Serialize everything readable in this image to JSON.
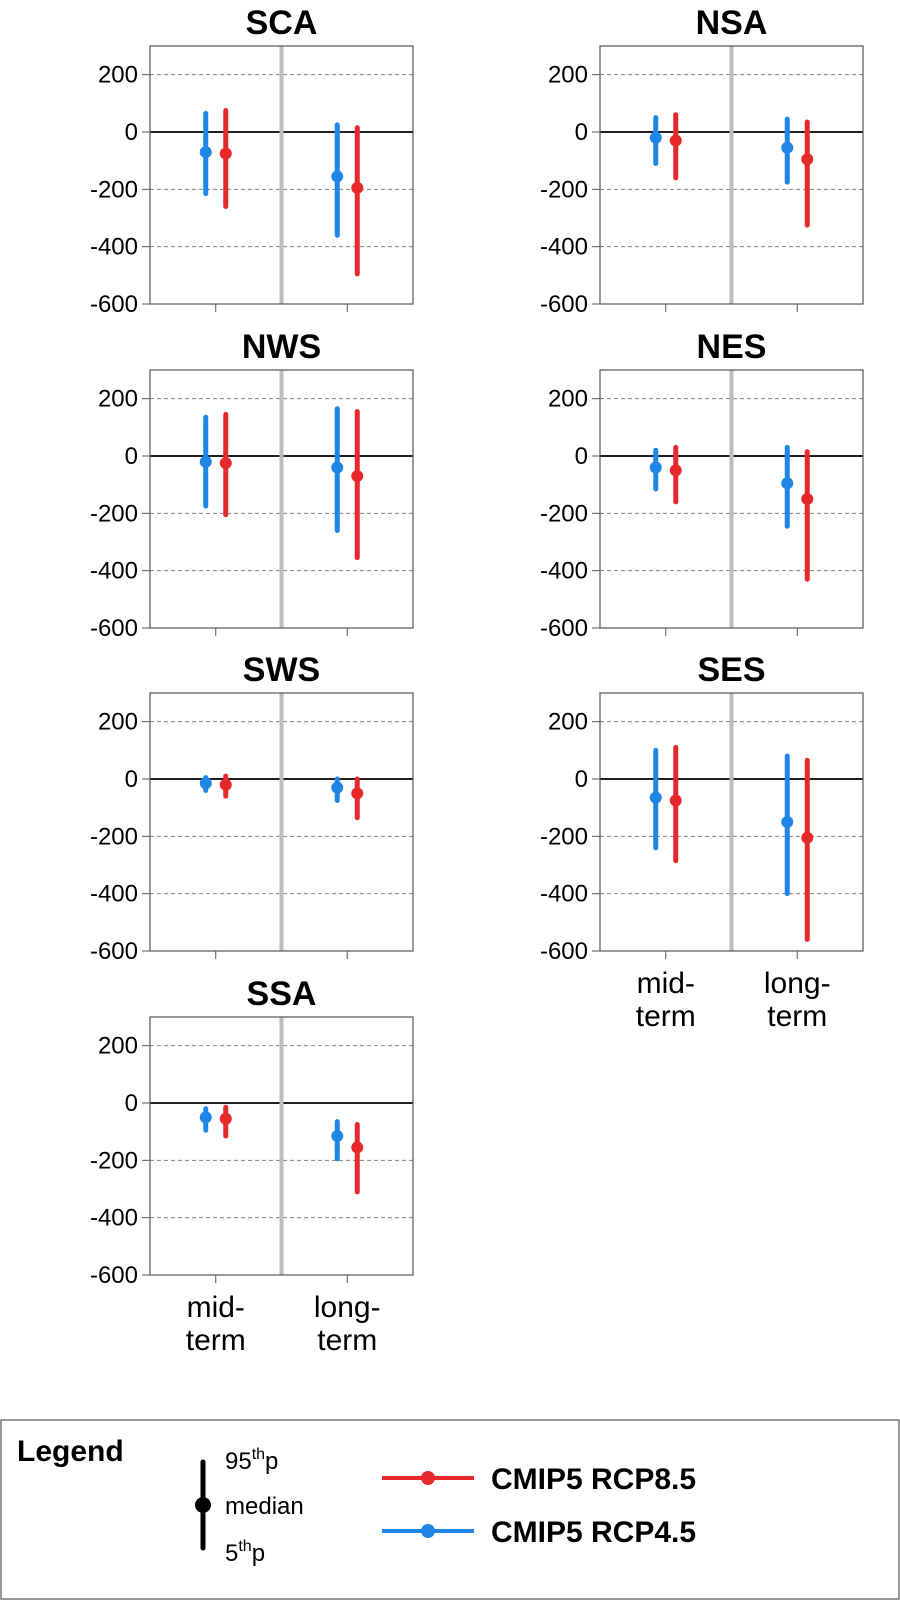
{
  "colors": {
    "rcp85": "#e8292b",
    "rcp45": "#1f86e8",
    "separator": "#bdbdbd",
    "grid": "#808080",
    "frame": "#555555"
  },
  "chart_data": {
    "type": "errorbar",
    "ylim": [
      -600,
      300
    ],
    "yticks": [
      200,
      0,
      -200,
      -400,
      -600
    ],
    "ytick_labels": [
      "200",
      "0",
      "-200",
      "-400",
      "-600"
    ],
    "grid": true,
    "categories": [
      {
        "top": "mid-",
        "bottom": "term"
      },
      {
        "top": "long-",
        "bottom": "term"
      }
    ],
    "series_keys": [
      "rcp45",
      "rcp85"
    ],
    "panels": [
      {
        "title": "SCA",
        "rcp45": [
          {
            "median": -70,
            "p5": -215,
            "p95": 65
          },
          {
            "median": -155,
            "p5": -360,
            "p95": 25
          }
        ],
        "rcp85": [
          {
            "median": -75,
            "p5": -260,
            "p95": 75
          },
          {
            "median": -195,
            "p5": -495,
            "p95": 15
          }
        ]
      },
      {
        "title": "NSA",
        "rcp45": [
          {
            "median": -20,
            "p5": -110,
            "p95": 50
          },
          {
            "median": -55,
            "p5": -175,
            "p95": 45
          }
        ],
        "rcp85": [
          {
            "median": -30,
            "p5": -160,
            "p95": 60
          },
          {
            "median": -95,
            "p5": -325,
            "p95": 35
          }
        ]
      },
      {
        "title": "NWS",
        "rcp45": [
          {
            "median": -20,
            "p5": -175,
            "p95": 135
          },
          {
            "median": -40,
            "p5": -260,
            "p95": 165
          }
        ],
        "rcp85": [
          {
            "median": -25,
            "p5": -205,
            "p95": 145
          },
          {
            "median": -70,
            "p5": -355,
            "p95": 155
          }
        ]
      },
      {
        "title": "NES",
        "rcp45": [
          {
            "median": -40,
            "p5": -115,
            "p95": 20
          },
          {
            "median": -95,
            "p5": -245,
            "p95": 30
          }
        ],
        "rcp85": [
          {
            "median": -50,
            "p5": -160,
            "p95": 30
          },
          {
            "median": -150,
            "p5": -430,
            "p95": 15
          }
        ]
      },
      {
        "title": "SWS",
        "rcp45": [
          {
            "median": -15,
            "p5": -40,
            "p95": 5
          },
          {
            "median": -30,
            "p5": -75,
            "p95": 0
          }
        ],
        "rcp85": [
          {
            "median": -20,
            "p5": -60,
            "p95": 10
          },
          {
            "median": -50,
            "p5": -135,
            "p95": 0
          }
        ]
      },
      {
        "title": "SES",
        "rcp45": [
          {
            "median": -65,
            "p5": -240,
            "p95": 100
          },
          {
            "median": -150,
            "p5": -400,
            "p95": 80
          }
        ],
        "rcp85": [
          {
            "median": -75,
            "p5": -285,
            "p95": 110
          },
          {
            "median": -205,
            "p5": -560,
            "p95": 65
          }
        ]
      },
      {
        "title": "SSA",
        "rcp45": [
          {
            "median": -50,
            "p5": -95,
            "p95": -20
          },
          {
            "median": -115,
            "p5": -195,
            "p95": -65
          }
        ],
        "rcp85": [
          {
            "median": -55,
            "p5": -115,
            "p95": -15
          },
          {
            "median": -155,
            "p5": -310,
            "p95": -75
          }
        ]
      }
    ]
  },
  "legend": {
    "title": "Legend",
    "p95_prefix": "95",
    "p95_sup": "th",
    "p95_suffix": "p",
    "median_label": "median",
    "p5_prefix": "5",
    "p5_sup": "th",
    "p5_suffix": "p",
    "series": [
      {
        "key": "rcp85",
        "label": "CMIP5 RCP8.5"
      },
      {
        "key": "rcp45",
        "label": "CMIP5 RCP4.5"
      }
    ]
  }
}
